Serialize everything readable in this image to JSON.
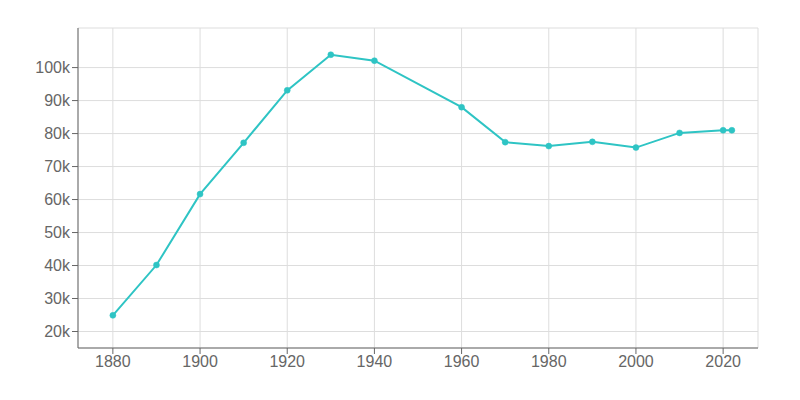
{
  "chart_data": {
    "type": "line",
    "x": [
      1880,
      1890,
      1900,
      1910,
      1920,
      1930,
      1940,
      1960,
      1970,
      1980,
      1990,
      2000,
      2010,
      2020,
      2022
    ],
    "values": [
      24900,
      40150,
      61650,
      77200,
      93100,
      103900,
      102100,
      88000,
      77400,
      76200,
      77500,
      75750,
      80200,
      81000,
      81000
    ],
    "color": "#2ec4c4",
    "marker": "circle",
    "xlim": [
      1872,
      2028
    ],
    "ylim": [
      15000,
      112000
    ],
    "xticks": [
      1880,
      1900,
      1920,
      1940,
      1960,
      1980,
      2000,
      2020
    ],
    "yticks": [
      {
        "value": 20000,
        "label": "20k"
      },
      {
        "value": 30000,
        "label": "30k"
      },
      {
        "value": 40000,
        "label": "40k"
      },
      {
        "value": 50000,
        "label": "50k"
      },
      {
        "value": 60000,
        "label": "60k"
      },
      {
        "value": 70000,
        "label": "70k"
      },
      {
        "value": 80000,
        "label": "80k"
      },
      {
        "value": 90000,
        "label": "90k"
      },
      {
        "value": 100000,
        "label": "100k"
      }
    ],
    "grid": true
  }
}
